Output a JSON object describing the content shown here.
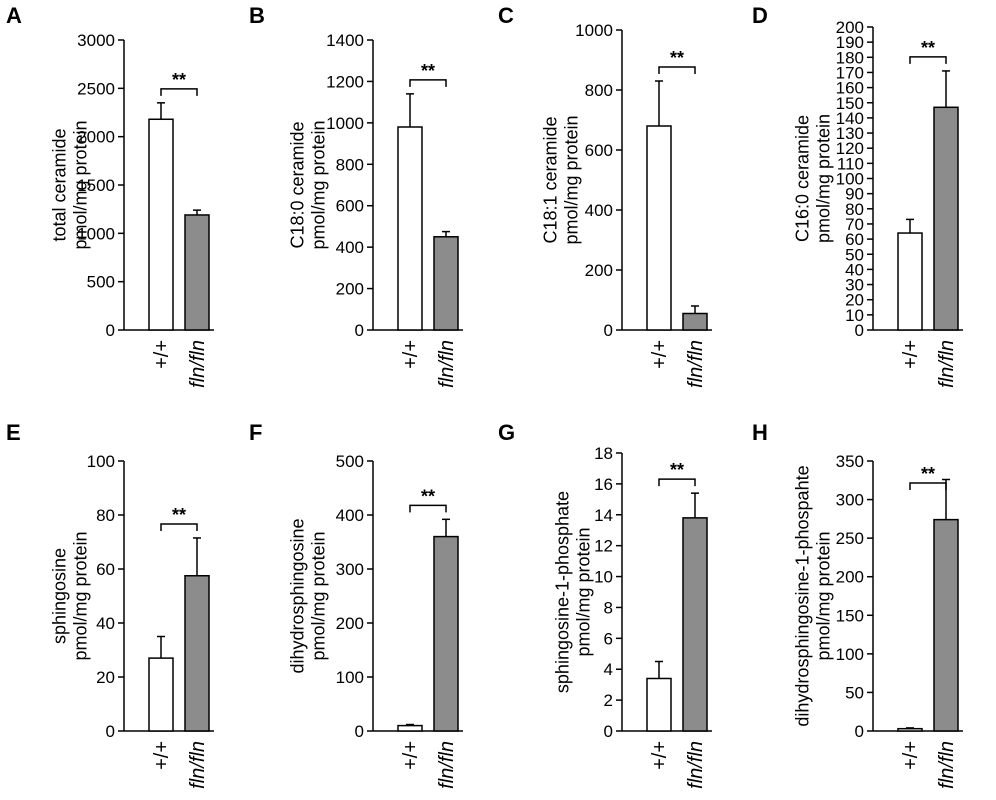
{
  "style": {
    "control_color": "#ffffff",
    "mutant_color": "#8c8c8c",
    "axis_color": "#000000"
  },
  "chart_data": [
    {
      "type": "bar",
      "panel": "A",
      "categories": [
        "+/+",
        "fln/fln"
      ],
      "values": [
        2180,
        1190
      ],
      "errors": [
        170,
        50
      ],
      "ylim": [
        0,
        3000
      ],
      "yticks": [
        0,
        500,
        1000,
        1500,
        2000,
        2500,
        3000
      ],
      "ylabel_lines": [
        "total ceramide",
        "pmol/mg protein"
      ],
      "significance": "**"
    },
    {
      "type": "bar",
      "panel": "B",
      "categories": [
        "+/+",
        "fln/fln"
      ],
      "values": [
        980,
        450
      ],
      "errors": [
        160,
        25
      ],
      "ylim": [
        0,
        1400
      ],
      "yticks": [
        0,
        200,
        400,
        600,
        800,
        1000,
        1200,
        1400
      ],
      "ylabel_lines": [
        "C18:0 ceramide",
        "pmol/mg protein"
      ],
      "significance": "**"
    },
    {
      "type": "bar",
      "panel": "C",
      "categories": [
        "+/+",
        "fln/fln"
      ],
      "values": [
        680,
        55
      ],
      "errors": [
        150,
        25
      ],
      "ylim": [
        0,
        1000
      ],
      "yticks": [
        0,
        200,
        400,
        600,
        800,
        1000
      ],
      "ylabel_lines": [
        "C18:1 ceramide",
        "pmol/mg protein"
      ],
      "significance": "**"
    },
    {
      "type": "bar",
      "panel": "D",
      "categories": [
        "+/+",
        "fln/fln"
      ],
      "values": [
        64,
        147
      ],
      "errors": [
        9,
        24
      ],
      "ylim": [
        0,
        200
      ],
      "yticks": [
        0,
        10,
        20,
        30,
        40,
        50,
        60,
        70,
        80,
        90,
        100,
        110,
        120,
        130,
        140,
        150,
        160,
        170,
        180,
        190,
        200
      ],
      "ylabel_lines": [
        "C16:0 ceramide",
        "pmol/mg protein"
      ],
      "significance": "**"
    },
    {
      "type": "bar",
      "panel": "E",
      "categories": [
        "+/+",
        "fln/fln"
      ],
      "values": [
        27,
        57.5
      ],
      "errors": [
        8,
        14
      ],
      "ylim": [
        0,
        100
      ],
      "yticks": [
        0,
        20,
        40,
        60,
        80,
        100
      ],
      "ylabel_lines": [
        "sphingosine",
        "pmol/mg protein"
      ],
      "significance": "**"
    },
    {
      "type": "bar",
      "panel": "F",
      "categories": [
        "+/+",
        "fln/fln"
      ],
      "values": [
        10,
        360
      ],
      "errors": [
        2,
        32
      ],
      "ylim": [
        0,
        500
      ],
      "yticks": [
        0,
        100,
        200,
        300,
        400,
        500
      ],
      "ylabel_lines": [
        "dihydrosphingosine",
        "pmol/mg protein"
      ],
      "significance": "**"
    },
    {
      "type": "bar",
      "panel": "G",
      "categories": [
        "+/+",
        "fln/fln"
      ],
      "values": [
        3.4,
        13.8
      ],
      "errors": [
        1.1,
        1.6
      ],
      "ylim": [
        0,
        18
      ],
      "yticks": [
        0,
        2,
        4,
        6,
        8,
        10,
        12,
        14,
        16,
        18
      ],
      "ylabel_lines": [
        "sphingosine-1-phosphate",
        "pmol/mg protein"
      ],
      "significance": "**"
    },
    {
      "type": "bar",
      "panel": "H",
      "categories": [
        "+/+",
        "fln/fln"
      ],
      "values": [
        3,
        274
      ],
      "errors": [
        1,
        52
      ],
      "ylim": [
        0,
        350
      ],
      "yticks": [
        0,
        50,
        100,
        150,
        200,
        250,
        300,
        350
      ],
      "ylabel_lines": [
        "dihydrosphingosine-1-phospahte",
        "pmol/mg protein"
      ],
      "significance": "**"
    }
  ]
}
